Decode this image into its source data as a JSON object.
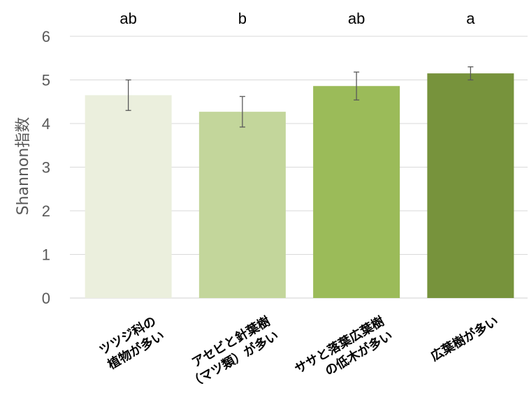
{
  "chart_data": {
    "type": "bar",
    "title": "",
    "xlabel": "",
    "ylabel": "Shannon指数",
    "ylim": [
      0,
      6
    ],
    "yticks": [
      0,
      1,
      2,
      3,
      4,
      5,
      6
    ],
    "grid": true,
    "legend": "none",
    "categories": [
      [
        "ツツジ科の",
        "植物が多い"
      ],
      [
        "アセビと針葉樹",
        "（マツ類）が多い"
      ],
      [
        "ササと落葉広葉樹",
        "の低木が多い"
      ],
      [
        "広葉樹が多い"
      ]
    ],
    "values": [
      4.65,
      4.27,
      4.86,
      5.15
    ],
    "error": [
      0.35,
      0.35,
      0.32,
      0.15
    ],
    "significance": [
      "ab",
      "b",
      "ab",
      "a"
    ],
    "colors": [
      "#ebefdd",
      "#c3d69b",
      "#9bbb59",
      "#77933c"
    ]
  }
}
